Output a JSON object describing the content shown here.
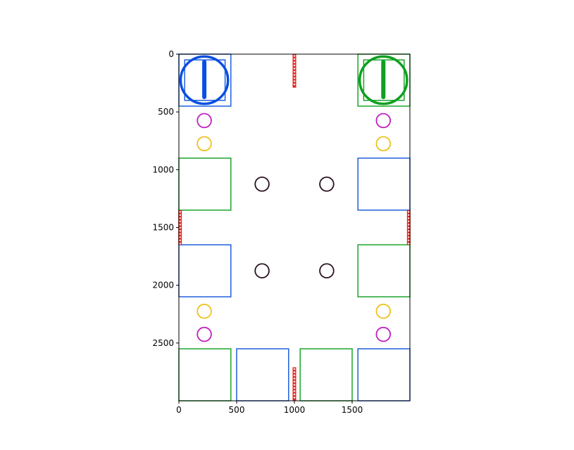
{
  "chart_data": {
    "type": "scatter",
    "title": "",
    "xlabel": "",
    "ylabel": "",
    "xlim": [
      0,
      2000
    ],
    "ylim": [
      3000,
      0
    ],
    "y_axis_inverted": true,
    "grid": false,
    "x_ticks": [
      0,
      500,
      1000,
      1500
    ],
    "y_ticks": [
      0,
      500,
      1000,
      1500,
      2000,
      2500
    ],
    "colors": {
      "blue": "#1f5fdc",
      "green": "#1aa52a",
      "red": "#e8231a",
      "magenta": "#c01ec0",
      "yellow": "#f0c020",
      "dark": "#2a1020",
      "robot_blue": "#0a50e0",
      "robot_green": "#10a020"
    },
    "zones": [
      {
        "color": "blue",
        "x0": 0,
        "y0": 0,
        "x1": 450,
        "y1": 450
      },
      {
        "color": "blue",
        "x0": 50,
        "y0": 50,
        "x1": 400,
        "y1": 400
      },
      {
        "color": "green",
        "x0": 1550,
        "y0": 0,
        "x1": 2000,
        "y1": 450
      },
      {
        "color": "green",
        "x0": 1600,
        "y0": 50,
        "x1": 1950,
        "y1": 400
      },
      {
        "color": "green",
        "x0": 0,
        "y0": 900,
        "x1": 450,
        "y1": 1350
      },
      {
        "color": "blue",
        "x0": 1550,
        "y0": 900,
        "x1": 2000,
        "y1": 1350
      },
      {
        "color": "blue",
        "x0": 0,
        "y0": 1650,
        "x1": 450,
        "y1": 2100
      },
      {
        "color": "green",
        "x0": 1550,
        "y0": 1650,
        "x1": 2000,
        "y1": 2100
      },
      {
        "color": "green",
        "x0": 0,
        "y0": 2550,
        "x1": 450,
        "y1": 3000
      },
      {
        "color": "blue",
        "x0": 500,
        "y0": 2550,
        "x1": 950,
        "y1": 3000
      },
      {
        "color": "green",
        "x0": 1050,
        "y0": 2550,
        "x1": 1500,
        "y1": 3000
      },
      {
        "color": "blue",
        "x0": 1550,
        "y0": 2550,
        "x1": 2000,
        "y1": 3000
      }
    ],
    "barriers": [
      {
        "x0": 1000,
        "y0": 0,
        "x1": 1000,
        "y1": 290
      },
      {
        "x0": 10,
        "y0": 1350,
        "x1": 10,
        "y1": 1650
      },
      {
        "x0": 1990,
        "y0": 1350,
        "x1": 1990,
        "y1": 1650
      },
      {
        "x0": 1000,
        "y0": 2710,
        "x1": 1000,
        "y1": 3000
      }
    ],
    "series": [
      {
        "color": "magenta",
        "r": 60,
        "points": [
          [
            220,
            575
          ],
          [
            1770,
            575
          ],
          [
            220,
            2425
          ],
          [
            1770,
            2425
          ]
        ]
      },
      {
        "color": "yellow",
        "r": 60,
        "points": [
          [
            220,
            775
          ],
          [
            1770,
            775
          ],
          [
            220,
            2225
          ],
          [
            1770,
            2225
          ]
        ]
      },
      {
        "color": "dark",
        "r": 60,
        "points": [
          [
            720,
            1125
          ],
          [
            1280,
            1125
          ],
          [
            720,
            1875
          ],
          [
            1280,
            1875
          ]
        ]
      }
    ],
    "robots": [
      {
        "color": "robot_blue",
        "x": 220,
        "y": 225,
        "r": 205,
        "heading_from": [
          220,
          225
        ],
        "heading_to": [
          220,
          380
        ]
      },
      {
        "color": "robot_green",
        "x": 1770,
        "y": 225,
        "r": 205,
        "heading_from": [
          1770,
          225
        ],
        "heading_to": [
          1770,
          380
        ]
      }
    ]
  }
}
